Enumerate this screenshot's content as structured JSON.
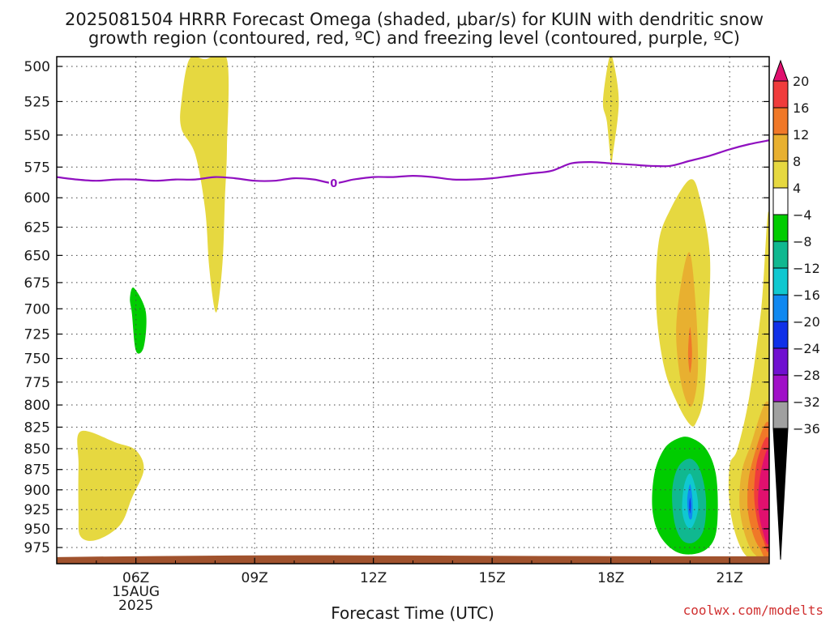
{
  "header": {
    "title_line1": "2025081504 HRRR Forecast Omega (shaded, μbar/s) for KUIN with dendritic snow",
    "title_line2": "growth region (contoured, red, ºC) and freezing level (contoured, purple, ºC)"
  },
  "footer": {
    "credit": "coolwx.com/modelts",
    "credit_color": "#d03030"
  },
  "chart_data": {
    "type": "contour",
    "title": "2025081504 HRRR Forecast Omega (shaded, μbar/s) for KUIN with dendritic snow growth region (contoured, red, ºC) and freezing level (contoured, purple, ºC)",
    "xlabel": "Forecast Time (UTC)",
    "ylabel": "",
    "x_units": "hours UTC on 15 Aug 2025",
    "xlim": [
      4,
      22
    ],
    "x_ticks": [
      {
        "value": 6,
        "label": "06Z",
        "sub": [
          "15AUG",
          "2025"
        ]
      },
      {
        "value": 9,
        "label": "09Z",
        "sub": []
      },
      {
        "value": 12,
        "label": "12Z",
        "sub": []
      },
      {
        "value": 15,
        "label": "15Z",
        "sub": []
      },
      {
        "value": 18,
        "label": "18Z",
        "sub": []
      },
      {
        "value": 21,
        "label": "21Z",
        "sub": []
      }
    ],
    "y_units": "pressure (hPa)",
    "y_scale": "log-pressure, inverted",
    "ylim": [
      990,
      495
    ],
    "y_ticks": [
      500,
      525,
      550,
      575,
      600,
      625,
      650,
      675,
      700,
      725,
      750,
      775,
      800,
      825,
      850,
      875,
      900,
      925,
      950,
      975
    ],
    "grid": true,
    "colorbar": {
      "labels": [
        "20",
        "16",
        "12",
        "8",
        "4",
        "−4",
        "−8",
        "−12",
        "−16",
        "−20",
        "−24",
        "−28",
        "−32",
        "−36"
      ],
      "colors": [
        "#e0106e",
        "#f03c3c",
        "#f07828",
        "#e8b030",
        "#e6d840",
        "#ffffff",
        "#00cc00",
        "#10b890",
        "#10c8d0",
        "#1088f0",
        "#1030e8",
        "#7010d0",
        "#a010c8",
        "#a0a0a0",
        "#000000"
      ]
    },
    "regions": [
      {
        "level_min": 4,
        "color": "#e6d840",
        "points": [
          [
            7.75,
            495
          ],
          [
            8.3,
            495
          ],
          [
            8.3,
            560
          ],
          [
            8.25,
            600
          ],
          [
            8.2,
            650
          ],
          [
            8.1,
            690
          ],
          [
            8.0,
            702
          ],
          [
            7.85,
            660
          ],
          [
            7.75,
            610
          ],
          [
            7.5,
            565
          ],
          [
            7.15,
            545
          ],
          [
            7.15,
            525
          ],
          [
            7.35,
            495
          ]
        ]
      },
      {
        "level_min": 4,
        "color": "#e6d840",
        "points": [
          [
            17.95,
            495
          ],
          [
            18.05,
            495
          ],
          [
            18.2,
            525
          ],
          [
            18.05,
            565
          ],
          [
            18.0,
            570
          ],
          [
            17.9,
            540
          ],
          [
            17.8,
            525
          ]
        ]
      },
      {
        "level_min": 4,
        "color": "#e6d840",
        "points": [
          [
            4.6,
            830
          ],
          [
            5.5,
            843
          ],
          [
            6.0,
            852
          ],
          [
            6.2,
            875
          ],
          [
            5.9,
            910
          ],
          [
            5.6,
            945
          ],
          [
            5.0,
            965
          ],
          [
            4.6,
            960
          ],
          [
            4.55,
            930
          ],
          [
            4.55,
            870
          ]
        ]
      },
      {
        "level_min": 4,
        "color": "#e6d840",
        "points": [
          [
            20.0,
            585
          ],
          [
            20.25,
            600
          ],
          [
            20.5,
            650
          ],
          [
            20.45,
            720
          ],
          [
            20.35,
            790
          ],
          [
            20.15,
            820
          ],
          [
            20.0,
            822
          ],
          [
            19.7,
            800
          ],
          [
            19.35,
            760
          ],
          [
            19.15,
            700
          ],
          [
            19.2,
            640
          ],
          [
            19.5,
            610
          ]
        ]
      },
      {
        "level_min": 8,
        "color": "#e8b030",
        "points": [
          [
            20.0,
            648
          ],
          [
            20.15,
            700
          ],
          [
            20.2,
            760
          ],
          [
            20.1,
            795
          ],
          [
            19.95,
            800
          ],
          [
            19.75,
            770
          ],
          [
            19.65,
            720
          ],
          [
            19.8,
            670
          ]
        ]
      },
      {
        "level_min": 12,
        "color": "#f07828",
        "points": [
          [
            20.0,
            718
          ],
          [
            20.05,
            745
          ],
          [
            20.0,
            765
          ],
          [
            19.95,
            745
          ]
        ]
      },
      {
        "level_min": 4,
        "color": "#e6d840",
        "points": [
          [
            22.0,
            620
          ],
          [
            22.0,
            990
          ],
          [
            21.5,
            990
          ],
          [
            21.2,
            965
          ],
          [
            21.0,
            920
          ],
          [
            21.0,
            870
          ],
          [
            21.2,
            850
          ],
          [
            21.5,
            790
          ],
          [
            21.8,
            700
          ]
        ]
      },
      {
        "level_min": 8,
        "color": "#e8b030",
        "points": [
          [
            22.0,
            800
          ],
          [
            22.0,
            985
          ],
          [
            21.65,
            985
          ],
          [
            21.4,
            960
          ],
          [
            21.25,
            920
          ],
          [
            21.3,
            880
          ],
          [
            21.5,
            850
          ]
        ]
      },
      {
        "level_min": 12,
        "color": "#f07828",
        "points": [
          [
            22.0,
            822
          ],
          [
            22.0,
            980
          ],
          [
            21.75,
            975
          ],
          [
            21.55,
            950
          ],
          [
            21.45,
            915
          ],
          [
            21.55,
            870
          ]
        ]
      },
      {
        "level_min": 16,
        "color": "#f03c3c",
        "points": [
          [
            22.0,
            842
          ],
          [
            22.0,
            972
          ],
          [
            21.85,
            965
          ],
          [
            21.68,
            935
          ],
          [
            21.62,
            900
          ],
          [
            21.72,
            860
          ]
        ]
      },
      {
        "level_min": 20,
        "color": "#e0106e",
        "points": [
          [
            22.0,
            855
          ],
          [
            22.0,
            965
          ],
          [
            21.82,
            950
          ],
          [
            21.72,
            915
          ],
          [
            21.8,
            875
          ]
        ]
      },
      {
        "level_min": -8,
        "color": "#00cc00",
        "points": [
          [
            5.95,
            680
          ],
          [
            6.25,
            703
          ],
          [
            6.2,
            738
          ],
          [
            6.0,
            742
          ],
          [
            5.9,
            705
          ],
          [
            5.85,
            690
          ]
        ]
      },
      {
        "level_min": -8,
        "color": "#00cc00",
        "points": [
          [
            20.0,
            837
          ],
          [
            20.4,
            850
          ],
          [
            20.65,
            880
          ],
          [
            20.7,
            930
          ],
          [
            20.6,
            965
          ],
          [
            20.25,
            982
          ],
          [
            19.7,
            982
          ],
          [
            19.25,
            960
          ],
          [
            19.05,
            925
          ],
          [
            19.1,
            880
          ],
          [
            19.35,
            850
          ],
          [
            19.7,
            838
          ]
        ]
      },
      {
        "level_min": -12,
        "color": "#10b890",
        "points": [
          [
            20.0,
            862
          ],
          [
            20.25,
            875
          ],
          [
            20.4,
            910
          ],
          [
            20.35,
            950
          ],
          [
            20.1,
            968
          ],
          [
            19.8,
            965
          ],
          [
            19.6,
            940
          ],
          [
            19.55,
            900
          ],
          [
            19.7,
            872
          ]
        ]
      },
      {
        "level_min": -16,
        "color": "#10c8d0",
        "points": [
          [
            20.0,
            880
          ],
          [
            20.15,
            900
          ],
          [
            20.2,
            925
          ],
          [
            20.05,
            948
          ],
          [
            19.9,
            945
          ],
          [
            19.8,
            925
          ],
          [
            19.85,
            895
          ]
        ]
      },
      {
        "level_min": -20,
        "color": "#1088f0",
        "points": [
          [
            20.0,
            893
          ],
          [
            20.06,
            912
          ],
          [
            20.05,
            935
          ],
          [
            19.97,
            935
          ],
          [
            19.93,
            912
          ]
        ]
      },
      {
        "level_min": -24,
        "color": "#1030e8",
        "points": [
          [
            20.0,
            910
          ],
          [
            20.02,
            920
          ],
          [
            20.0,
            930
          ],
          [
            19.98,
            920
          ]
        ]
      }
    ],
    "freezing_level": {
      "label": "0",
      "color": "#9010c0",
      "x": [
        4,
        4.5,
        5,
        5.5,
        6,
        6.5,
        7,
        7.5,
        8,
        8.5,
        9,
        9.5,
        10,
        10.5,
        11,
        11.5,
        12,
        12.5,
        13,
        13.5,
        14,
        14.5,
        15,
        15.5,
        16,
        16.5,
        17,
        17.5,
        18,
        18.5,
        19,
        19.5,
        20,
        20.5,
        21,
        21.5,
        22
      ],
      "y": [
        583,
        585,
        586,
        585,
        585,
        586,
        585,
        585,
        583,
        584,
        586,
        586,
        584,
        585,
        588,
        585,
        583,
        583,
        582,
        583,
        585,
        585,
        584,
        582,
        580,
        578,
        572,
        571,
        572,
        573,
        574,
        574,
        570,
        566,
        561,
        557,
        554
      ]
    },
    "ground": {
      "color": "#a0522d",
      "top_hpa": 987
    }
  }
}
